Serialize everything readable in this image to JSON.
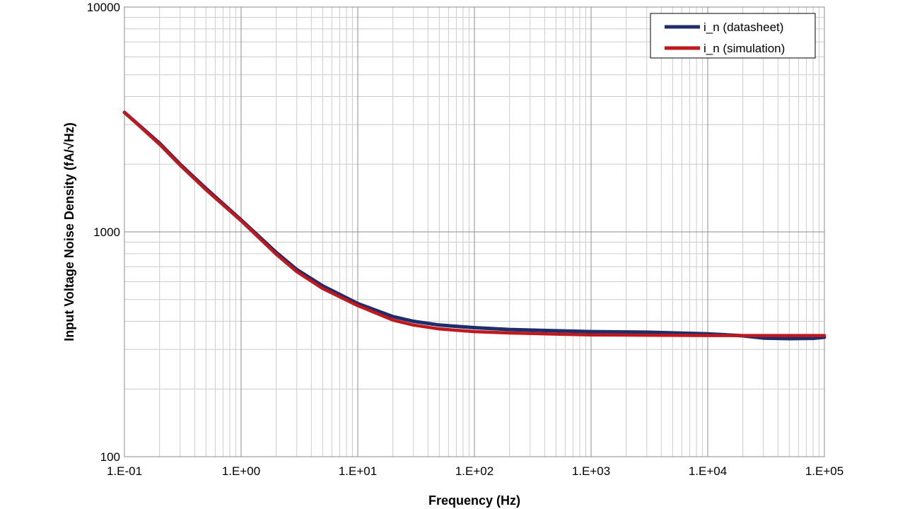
{
  "chart_data": {
    "type": "line",
    "xlabel": "Frequency (Hz)",
    "ylabel": "Input Voltage Noise Density (fA/√Hz)",
    "x_scale": "log",
    "y_scale": "log",
    "xlim": [
      0.1,
      100000
    ],
    "ylim": [
      100,
      10000
    ],
    "x_ticks": [
      0.1,
      1,
      10,
      100,
      1000,
      10000,
      100000
    ],
    "x_tick_labels": [
      "1.E-01",
      "1.E+00",
      "1.E+01",
      "1.E+02",
      "1.E+03",
      "1.E+04",
      "1.E+05"
    ],
    "y_ticks": [
      100,
      1000,
      10000
    ],
    "y_tick_labels": [
      "100",
      "1000",
      "10000"
    ],
    "grid": true,
    "legend_position": "top-right",
    "series": [
      {
        "name": "i_n (datasheet)",
        "color": "#1f2d6b",
        "points": [
          [
            0.1,
            3400
          ],
          [
            0.2,
            2480
          ],
          [
            0.3,
            2000
          ],
          [
            0.5,
            1560
          ],
          [
            1,
            1130
          ],
          [
            2,
            810
          ],
          [
            3,
            680
          ],
          [
            5,
            575
          ],
          [
            10,
            480
          ],
          [
            20,
            420
          ],
          [
            30,
            400
          ],
          [
            50,
            385
          ],
          [
            100,
            375
          ],
          [
            200,
            368
          ],
          [
            500,
            363
          ],
          [
            1000,
            360
          ],
          [
            3000,
            358
          ],
          [
            10000,
            352
          ],
          [
            20000,
            345
          ],
          [
            30000,
            337
          ],
          [
            50000,
            335
          ],
          [
            80000,
            336
          ],
          [
            100000,
            340
          ]
        ]
      },
      {
        "name": "i_n (simulation)",
        "color": "#c0181c",
        "points": [
          [
            0.1,
            3400
          ],
          [
            0.2,
            2450
          ],
          [
            0.3,
            1980
          ],
          [
            0.5,
            1540
          ],
          [
            1,
            1120
          ],
          [
            2,
            795
          ],
          [
            3,
            665
          ],
          [
            5,
            560
          ],
          [
            10,
            470
          ],
          [
            20,
            405
          ],
          [
            30,
            385
          ],
          [
            50,
            370
          ],
          [
            100,
            360
          ],
          [
            200,
            355
          ],
          [
            500,
            351
          ],
          [
            1000,
            348
          ],
          [
            10000,
            346
          ],
          [
            100000,
            346
          ]
        ]
      }
    ]
  }
}
